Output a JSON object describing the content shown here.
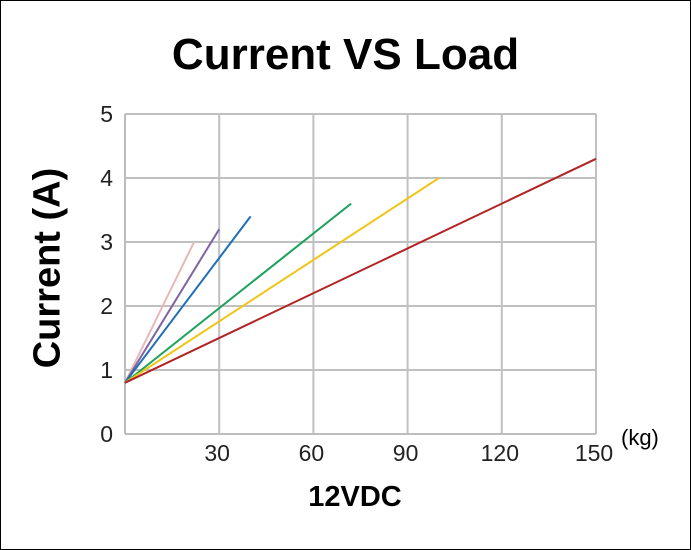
{
  "chart_data": {
    "type": "line",
    "title": "Current VS Load",
    "xlabel": "12VDC",
    "ylabel": "Current (A)",
    "x_unit": "(kg)",
    "xlim": [
      0,
      150
    ],
    "ylim": [
      0,
      5
    ],
    "x_ticks": [
      30,
      60,
      90,
      120,
      150
    ],
    "y_ticks": [
      0,
      1,
      2,
      3,
      4,
      5
    ],
    "grid": true,
    "series": [
      {
        "color": "#e6b8b7",
        "x": [
          0,
          22
        ],
        "y": [
          0.8,
          3.0
        ]
      },
      {
        "color": "#8064a2",
        "x": [
          0,
          30
        ],
        "y": [
          0.8,
          3.2
        ]
      },
      {
        "color": "#1f6fb5",
        "x": [
          0,
          40
        ],
        "y": [
          0.8,
          3.4
        ]
      },
      {
        "color": "#1aa15b",
        "x": [
          0,
          72
        ],
        "y": [
          0.8,
          3.6
        ]
      },
      {
        "color": "#f0c419",
        "x": [
          0,
          100
        ],
        "y": [
          0.8,
          4.0
        ]
      },
      {
        "color": "#b22222",
        "x": [
          0,
          150
        ],
        "y": [
          0.8,
          4.3
        ]
      }
    ]
  }
}
